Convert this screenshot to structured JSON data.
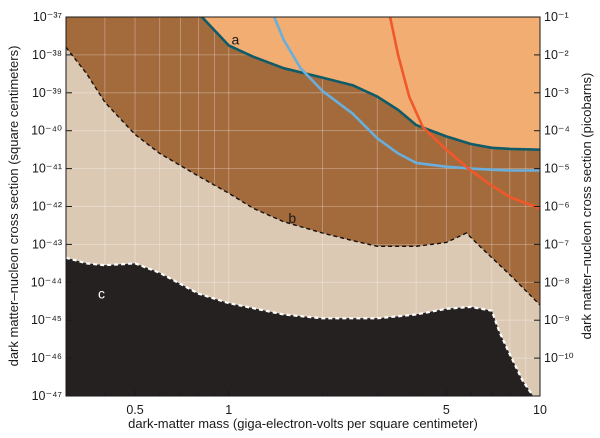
{
  "chart_data": {
    "type": "area",
    "xlabel": "dark-matter mass (giga-electron-volts per square centimeter)",
    "ylabel_left": "dark matter–nucleon cross section (square centimeters)",
    "ylabel_right": "dark matter–nucleon cross section (picobarns)",
    "x_scale": "log",
    "y_scale": "log",
    "xlim": [
      0.3,
      10
    ],
    "ylim_left_exponent": [
      -47,
      -37
    ],
    "ylim_right_exponent": [
      -11,
      -1
    ],
    "x_ticks": [
      {
        "value": 0.5,
        "label": "0.5"
      },
      {
        "value": 1,
        "label": "1"
      },
      {
        "value": 5,
        "label": "5"
      },
      {
        "value": 10,
        "label": "10"
      }
    ],
    "y_ticks_left": [
      {
        "value": -37,
        "label": "10⁻³⁷"
      },
      {
        "value": -38,
        "label": "10⁻³⁸"
      },
      {
        "value": -39,
        "label": "10⁻³⁹"
      },
      {
        "value": -40,
        "label": "10⁻⁴⁰"
      },
      {
        "value": -41,
        "label": "10⁻⁴¹"
      },
      {
        "value": -42,
        "label": "10⁻⁴²"
      },
      {
        "value": -43,
        "label": "10⁻⁴³"
      },
      {
        "value": -44,
        "label": "10⁻⁴⁴"
      },
      {
        "value": -45,
        "label": "10⁻⁴⁵"
      },
      {
        "value": -46,
        "label": "10⁻⁴⁶"
      },
      {
        "value": -47,
        "label": "10⁻⁴⁷"
      }
    ],
    "y_ticks_right": [
      {
        "value": -1,
        "label": "10⁻¹"
      },
      {
        "value": -2,
        "label": "10⁻²"
      },
      {
        "value": -3,
        "label": "10⁻³"
      },
      {
        "value": -4,
        "label": "10⁻⁴"
      },
      {
        "value": -5,
        "label": "10⁻⁵"
      },
      {
        "value": -6,
        "label": "10⁻⁶"
      },
      {
        "value": -7,
        "label": "10⁻⁷"
      },
      {
        "value": -8,
        "label": "10⁻⁸"
      },
      {
        "value": -9,
        "label": "10⁻⁹"
      },
      {
        "value": -10,
        "label": "10⁻¹⁰"
      }
    ],
    "colors": {
      "background": "#dcc9b4",
      "region_a": "#f2ae72",
      "region_b": "#a36a3c",
      "region_c": "#252120",
      "curve_teal": "#0f5b68",
      "curve_blue": "#6aaedc",
      "curve_red": "#f0582a"
    },
    "regions": [
      {
        "label": "a",
        "label_at": {
          "x": 1.05,
          "log_y": -37.6
        },
        "label_color": "#1a1a1a",
        "upper_boundary": [
          [
            0.82,
            -37
          ],
          [
            10,
            -37
          ]
        ],
        "lower_boundary": [
          [
            0.82,
            -37
          ],
          [
            0.9,
            -37.35
          ],
          [
            1.0,
            -37.75
          ],
          [
            1.2,
            -38.05
          ],
          [
            1.5,
            -38.35
          ],
          [
            2.0,
            -38.6
          ],
          [
            2.5,
            -38.8
          ],
          [
            3.0,
            -39.1
          ],
          [
            3.5,
            -39.45
          ],
          [
            4.0,
            -39.85
          ],
          [
            5.0,
            -40.15
          ],
          [
            6.0,
            -40.35
          ],
          [
            7.0,
            -40.45
          ],
          [
            8.0,
            -40.48
          ],
          [
            10,
            -40.5
          ]
        ]
      },
      {
        "label": "b",
        "label_at": {
          "x": 1.6,
          "log_y": -42.3
        },
        "label_color": "#1a1a1a",
        "boundary": [
          [
            0.3,
            -37.8
          ],
          [
            0.35,
            -38.5
          ],
          [
            0.4,
            -39.25
          ],
          [
            0.5,
            -40.1
          ],
          [
            0.6,
            -40.6
          ],
          [
            0.8,
            -41.2
          ],
          [
            1.0,
            -41.65
          ],
          [
            1.2,
            -42.05
          ],
          [
            1.5,
            -42.4
          ],
          [
            2.0,
            -42.7
          ],
          [
            2.5,
            -42.9
          ],
          [
            3.0,
            -43.05
          ],
          [
            4.0,
            -43.05
          ],
          [
            5.0,
            -42.95
          ],
          [
            5.8,
            -42.7
          ],
          [
            6.5,
            -43.1
          ],
          [
            8.0,
            -43.8
          ],
          [
            10,
            -44.6
          ]
        ]
      },
      {
        "label": "c",
        "label_at": {
          "x": 0.39,
          "log_y": -44.3
        },
        "label_color": "#ffffff",
        "boundary": [
          [
            0.3,
            -43.35
          ],
          [
            0.35,
            -43.5
          ],
          [
            0.4,
            -43.55
          ],
          [
            0.5,
            -43.5
          ],
          [
            0.6,
            -43.75
          ],
          [
            0.8,
            -44.3
          ],
          [
            1.0,
            -44.55
          ],
          [
            1.5,
            -44.85
          ],
          [
            2.0,
            -44.95
          ],
          [
            3.0,
            -44.95
          ],
          [
            4.0,
            -44.85
          ],
          [
            5.0,
            -44.7
          ],
          [
            6.0,
            -44.65
          ],
          [
            7.0,
            -44.75
          ],
          [
            7.4,
            -45.3
          ],
          [
            8.0,
            -45.9
          ],
          [
            8.8,
            -46.6
          ],
          [
            9.5,
            -47.0
          ]
        ]
      }
    ],
    "series": [
      {
        "color": "#0f5b68",
        "points": [
          [
            0.82,
            -37
          ],
          [
            0.9,
            -37.35
          ],
          [
            1.0,
            -37.75
          ],
          [
            1.2,
            -38.05
          ],
          [
            1.5,
            -38.35
          ],
          [
            2.0,
            -38.6
          ],
          [
            2.5,
            -38.8
          ],
          [
            3.0,
            -39.1
          ],
          [
            3.5,
            -39.45
          ],
          [
            4.0,
            -39.85
          ],
          [
            5.0,
            -40.15
          ],
          [
            6.0,
            -40.35
          ],
          [
            7.0,
            -40.45
          ],
          [
            8.0,
            -40.48
          ],
          [
            10,
            -40.5
          ]
        ]
      },
      {
        "color": "#6aaedc",
        "points": [
          [
            1.4,
            -37
          ],
          [
            1.5,
            -37.6
          ],
          [
            1.7,
            -38.35
          ],
          [
            2.0,
            -38.95
          ],
          [
            2.5,
            -39.55
          ],
          [
            3.0,
            -40.2
          ],
          [
            3.5,
            -40.6
          ],
          [
            4.0,
            -40.85
          ],
          [
            5.0,
            -40.95
          ],
          [
            6.0,
            -41.0
          ],
          [
            7.0,
            -41.03
          ],
          [
            8.0,
            -41.05
          ],
          [
            10,
            -41.05
          ]
        ]
      },
      {
        "color": "#f0582a",
        "points": [
          [
            3.3,
            -37
          ],
          [
            3.5,
            -38
          ],
          [
            3.8,
            -39.1
          ],
          [
            4.2,
            -39.9
          ],
          [
            5.0,
            -40.5
          ],
          [
            6.0,
            -41.05
          ],
          [
            7.0,
            -41.45
          ],
          [
            8.0,
            -41.75
          ],
          [
            10,
            -42.05
          ]
        ]
      }
    ]
  }
}
